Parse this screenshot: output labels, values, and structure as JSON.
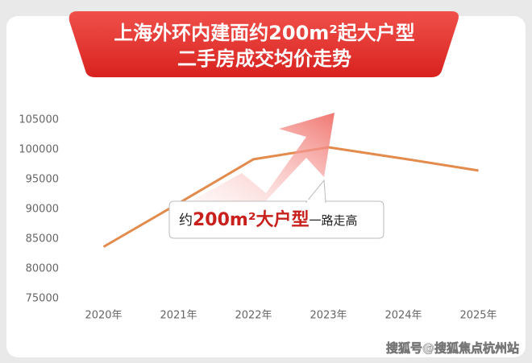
{
  "chart_data": {
    "type": "line",
    "title": [
      "上海外环内建面约200m²起大户型",
      "二手房成交均价走势"
    ],
    "categories": [
      "2020年",
      "2021年",
      "2022年",
      "2023年",
      "2024年",
      "2025年"
    ],
    "values": [
      83700,
      91000,
      98400,
      100400,
      98500,
      96500
    ],
    "color": "#e38b4d",
    "ylim": [
      75000,
      105000
    ],
    "yticks": [
      75000,
      80000,
      85000,
      90000,
      95000,
      100000,
      105000
    ],
    "annotation": [
      "约",
      "200m²大户型",
      "一路走高"
    ],
    "watermark": "搜狐号@搜狐焦点杭州站"
  }
}
